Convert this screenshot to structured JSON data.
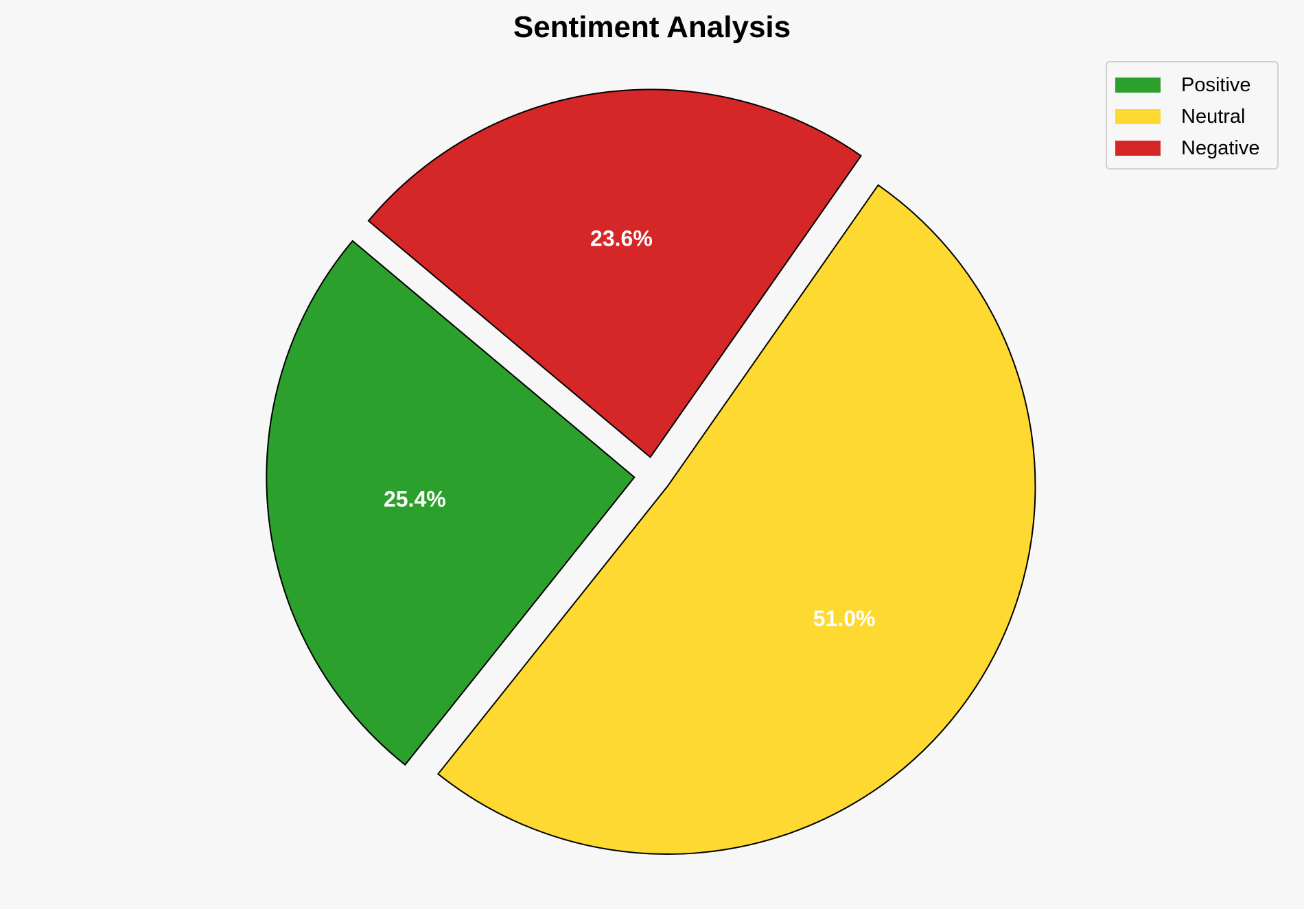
{
  "chart_data": {
    "type": "pie",
    "title": "Sentiment Analysis",
    "labels": [
      "Positive",
      "Neutral",
      "Negative"
    ],
    "values": [
      25.4,
      51.0,
      23.6
    ],
    "value_labels": [
      "25.4%",
      "51.0%",
      "23.6%"
    ],
    "colors": [
      "#2ca02c",
      "#fdd931",
      "#d62728"
    ],
    "start_angle": 140,
    "explode": [
      0.05,
      0.05,
      0.05
    ],
    "legend_placement": "top-right"
  }
}
